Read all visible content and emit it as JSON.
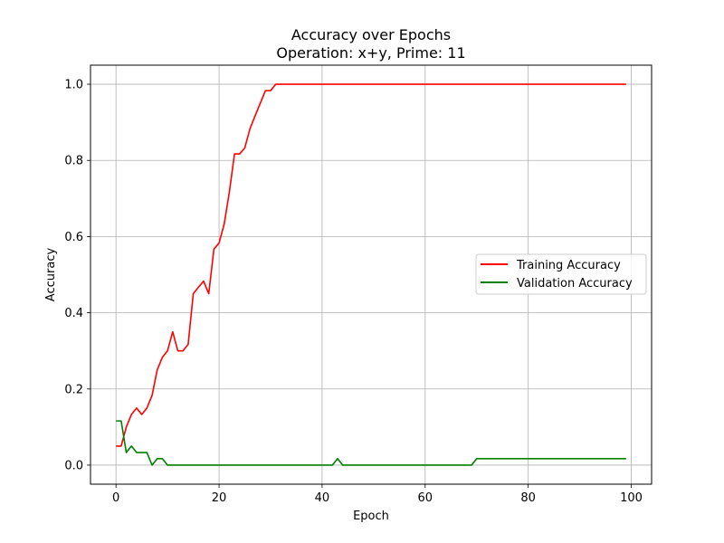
{
  "chart_data": {
    "type": "line",
    "title": "Accuracy over Epochs",
    "subtitle": "Operation: x+y, Prime: 11",
    "xlabel": "Epoch",
    "ylabel": "Accuracy",
    "xlim": [
      -4.95,
      103.95
    ],
    "ylim": [
      -0.05,
      1.05
    ],
    "xticks": [
      0,
      20,
      40,
      60,
      80,
      100
    ],
    "yticks": [
      0.0,
      0.2,
      0.4,
      0.6,
      0.8,
      1.0
    ],
    "xtick_labels": [
      "0",
      "20",
      "40",
      "60",
      "80",
      "100"
    ],
    "ytick_labels": [
      "0.0",
      "0.2",
      "0.4",
      "0.6",
      "0.8",
      "1.0"
    ],
    "grid": true,
    "legend": "center-right",
    "series": [
      {
        "name": "Training Accuracy",
        "color": "#ff0000",
        "x": [
          0,
          1,
          2,
          3,
          4,
          5,
          6,
          7,
          8,
          9,
          10,
          11,
          12,
          13,
          14,
          15,
          16,
          17,
          18,
          19,
          20,
          21,
          22,
          23,
          24,
          25,
          26,
          27,
          28,
          29,
          30,
          31,
          32,
          33,
          34,
          35,
          36,
          37,
          38,
          39,
          40,
          41,
          42,
          43,
          44,
          45,
          46,
          47,
          48,
          49,
          50,
          51,
          52,
          53,
          54,
          55,
          56,
          57,
          58,
          59,
          60,
          61,
          62,
          63,
          64,
          65,
          66,
          67,
          68,
          69,
          70,
          71,
          72,
          73,
          74,
          75,
          76,
          77,
          78,
          79,
          80,
          81,
          82,
          83,
          84,
          85,
          86,
          87,
          88,
          89,
          90,
          91,
          92,
          93,
          94,
          95,
          96,
          97,
          98,
          99
        ],
        "y": [
          0.05,
          0.05,
          0.1,
          0.133,
          0.15,
          0.133,
          0.15,
          0.183,
          0.25,
          0.283,
          0.3,
          0.35,
          0.3,
          0.3,
          0.317,
          0.45,
          0.467,
          0.483,
          0.45,
          0.567,
          0.583,
          0.633,
          0.717,
          0.817,
          0.817,
          0.833,
          0.883,
          0.917,
          0.95,
          0.983,
          0.983,
          1.0,
          1.0,
          1.0,
          1.0,
          1.0,
          1.0,
          1.0,
          1.0,
          1.0,
          1.0,
          1.0,
          1.0,
          1.0,
          1.0,
          1.0,
          1.0,
          1.0,
          1.0,
          1.0,
          1.0,
          1.0,
          1.0,
          1.0,
          1.0,
          1.0,
          1.0,
          1.0,
          1.0,
          1.0,
          1.0,
          1.0,
          1.0,
          1.0,
          1.0,
          1.0,
          1.0,
          1.0,
          1.0,
          1.0,
          1.0,
          1.0,
          1.0,
          1.0,
          1.0,
          1.0,
          1.0,
          1.0,
          1.0,
          1.0,
          1.0,
          1.0,
          1.0,
          1.0,
          1.0,
          1.0,
          1.0,
          1.0,
          1.0,
          1.0,
          1.0,
          1.0,
          1.0,
          1.0,
          1.0,
          1.0,
          1.0,
          1.0,
          1.0,
          1.0
        ]
      },
      {
        "name": "Validation Accuracy",
        "color": "#008000",
        "x": [
          0,
          1,
          2,
          3,
          4,
          5,
          6,
          7,
          8,
          9,
          10,
          11,
          12,
          13,
          14,
          15,
          16,
          17,
          18,
          19,
          20,
          21,
          22,
          23,
          24,
          25,
          26,
          27,
          28,
          29,
          30,
          31,
          32,
          33,
          34,
          35,
          36,
          37,
          38,
          39,
          40,
          41,
          42,
          43,
          44,
          45,
          46,
          47,
          48,
          49,
          50,
          51,
          52,
          53,
          54,
          55,
          56,
          57,
          58,
          59,
          60,
          61,
          62,
          63,
          64,
          65,
          66,
          67,
          68,
          69,
          70,
          71,
          72,
          73,
          74,
          75,
          76,
          77,
          78,
          79,
          80,
          81,
          82,
          83,
          84,
          85,
          86,
          87,
          88,
          89,
          90,
          91,
          92,
          93,
          94,
          95,
          96,
          97,
          98,
          99
        ],
        "y": [
          0.116,
          0.116,
          0.033,
          0.05,
          0.033,
          0.033,
          0.033,
          0.0,
          0.017,
          0.017,
          0.0,
          0.0,
          0.0,
          0.0,
          0.0,
          0.0,
          0.0,
          0.0,
          0.0,
          0.0,
          0.0,
          0.0,
          0.0,
          0.0,
          0.0,
          0.0,
          0.0,
          0.0,
          0.0,
          0.0,
          0.0,
          0.0,
          0.0,
          0.0,
          0.0,
          0.0,
          0.0,
          0.0,
          0.0,
          0.0,
          0.0,
          0.0,
          0.0,
          0.017,
          0.0,
          0.0,
          0.0,
          0.0,
          0.0,
          0.0,
          0.0,
          0.0,
          0.0,
          0.0,
          0.0,
          0.0,
          0.0,
          0.0,
          0.0,
          0.0,
          0.0,
          0.0,
          0.0,
          0.0,
          0.0,
          0.0,
          0.0,
          0.0,
          0.0,
          0.0,
          0.017,
          0.017,
          0.017,
          0.017,
          0.017,
          0.017,
          0.017,
          0.017,
          0.017,
          0.017,
          0.017,
          0.017,
          0.017,
          0.017,
          0.017,
          0.017,
          0.017,
          0.017,
          0.017,
          0.017,
          0.017,
          0.017,
          0.017,
          0.017,
          0.017,
          0.017,
          0.017,
          0.017,
          0.017,
          0.017
        ]
      }
    ]
  }
}
